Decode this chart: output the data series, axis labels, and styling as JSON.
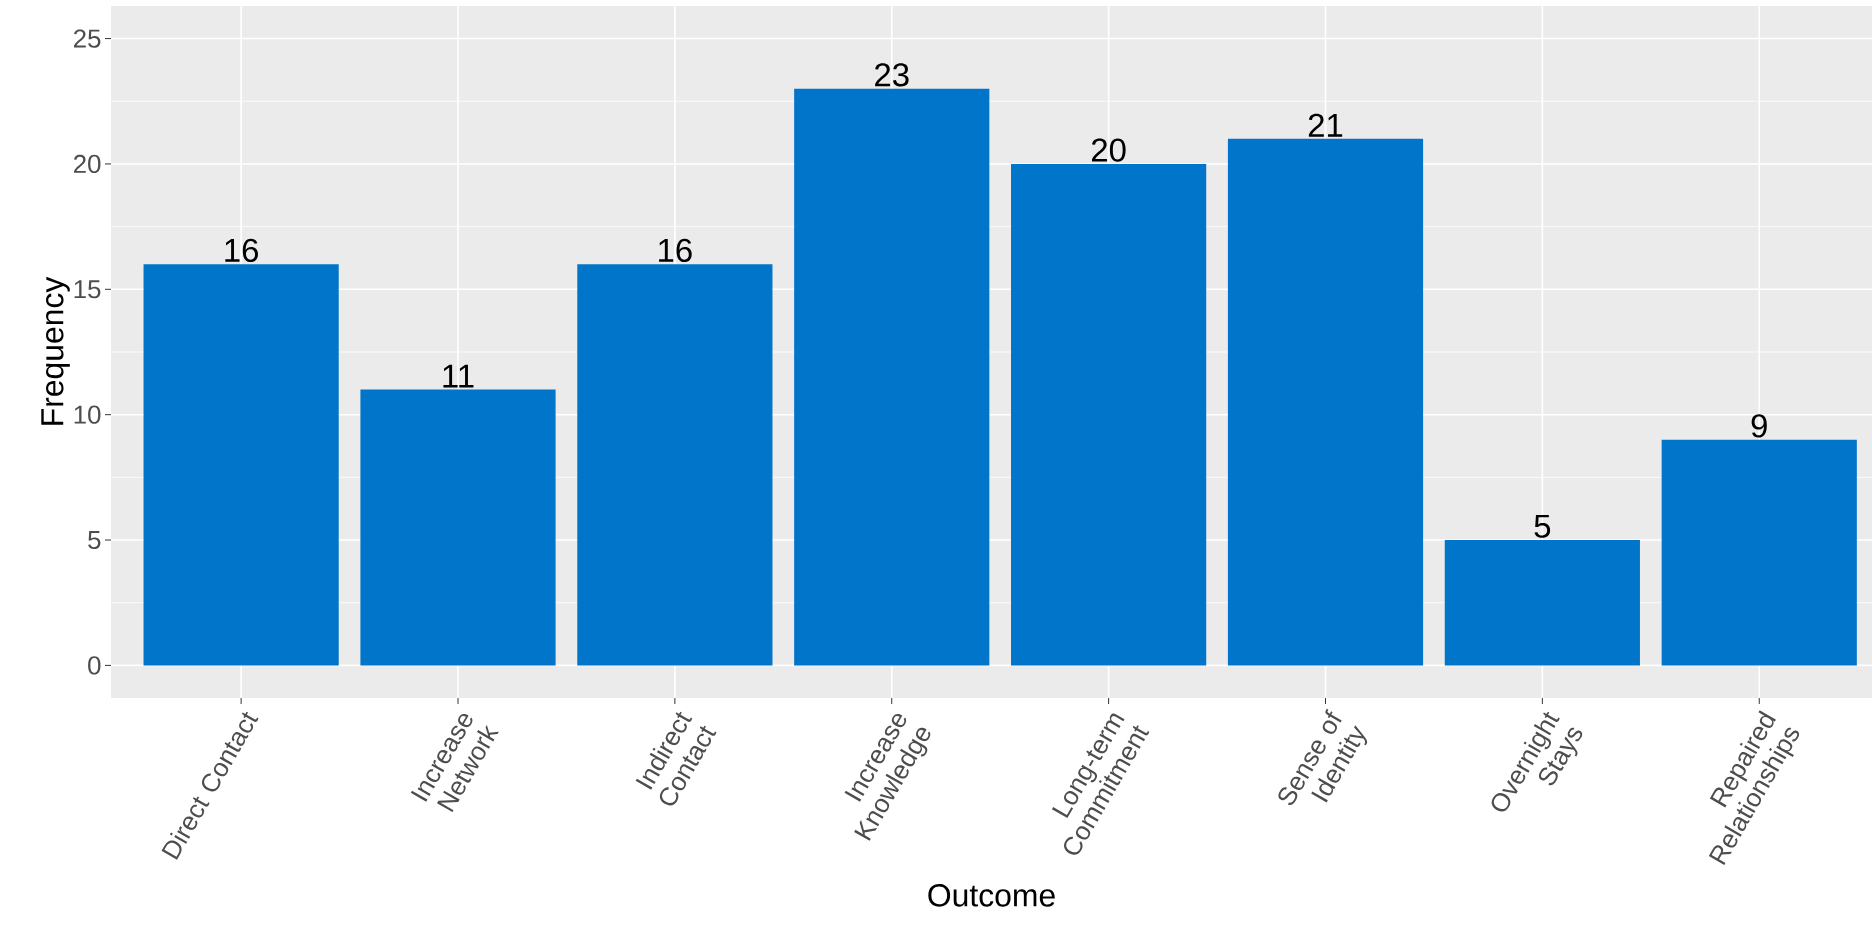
{
  "chart_data": {
    "type": "bar",
    "xlabel": "Outcome",
    "ylabel": "Frequency",
    "categories": [
      "Direct Contact",
      "Increase Network",
      "Indirect Contact",
      "Increase Knowledge",
      "Long-term Commitment",
      "Sense of Identity",
      "Overnight Stays",
      "Repaired Relationships"
    ],
    "values": [
      16,
      11,
      16,
      23,
      20,
      21,
      5,
      9
    ],
    "color": "#0075c9",
    "ylim": [
      -1.3,
      26.3
    ],
    "yticks": [
      0,
      5,
      10,
      15,
      20,
      25
    ],
    "grid": true,
    "data_labels": true
  }
}
